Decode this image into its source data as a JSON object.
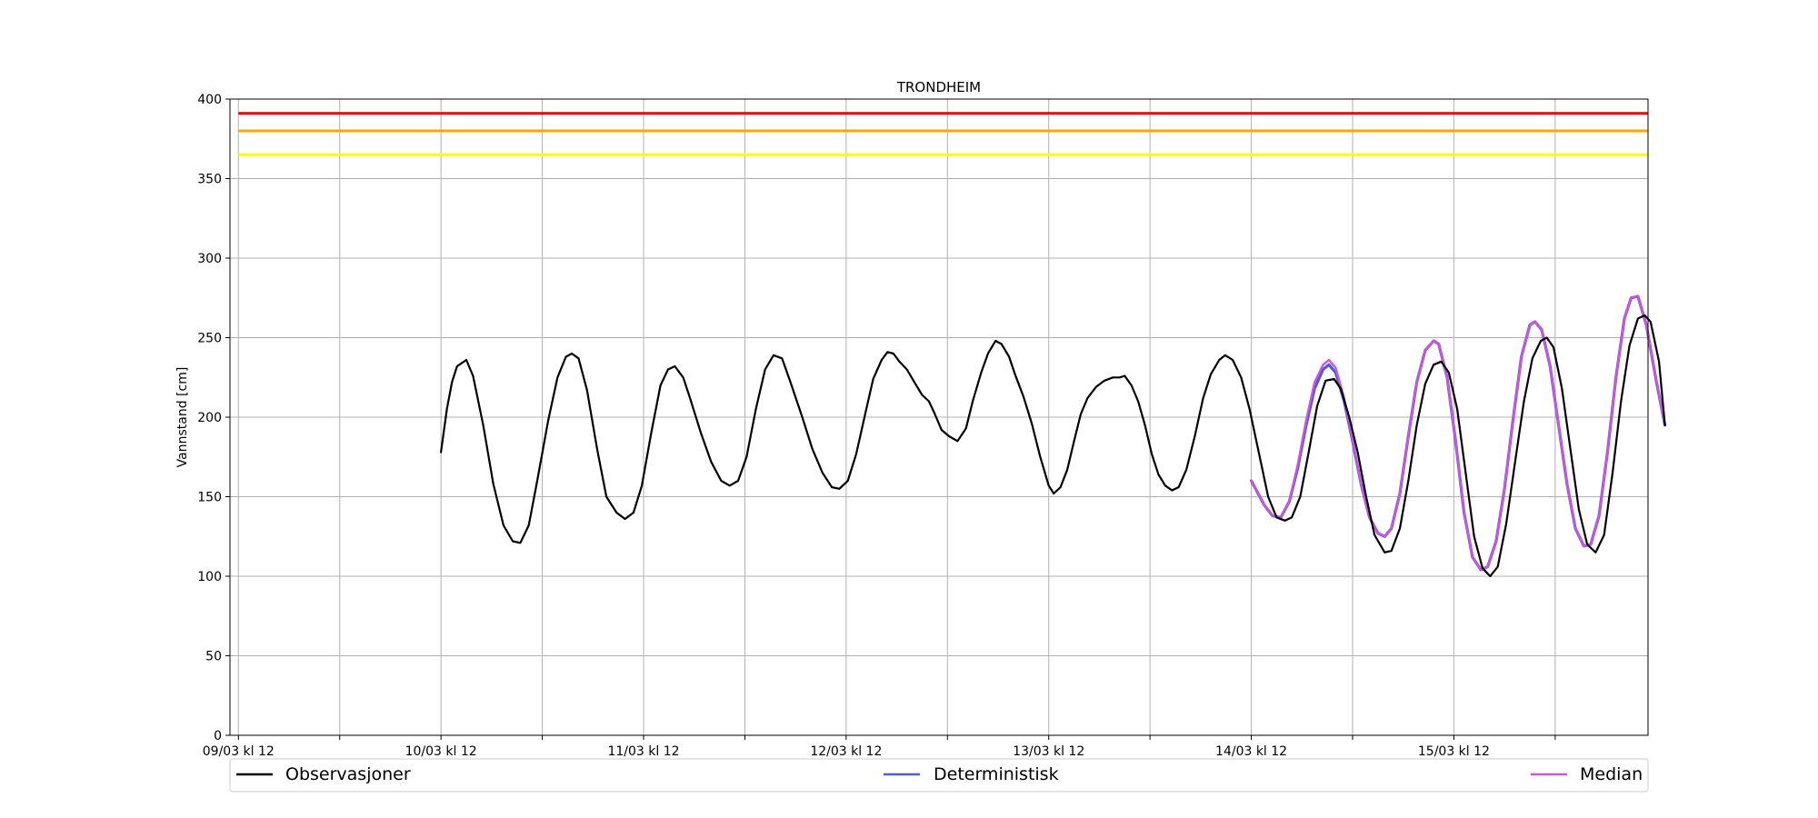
{
  "chart_data": {
    "type": "line",
    "title": "TRONDHEIM",
    "xlabel": "",
    "ylabel": "Vannstand [cm]",
    "ylim": [
      0,
      400
    ],
    "xlim_hours": [
      -1,
      167
    ],
    "x_unit": "hours after 09/03 kl 12",
    "yticks": [
      0,
      50,
      100,
      150,
      200,
      250,
      300,
      350,
      400
    ],
    "xticks": [
      {
        "h": 0,
        "label": "09/03 kl 12"
      },
      {
        "h": 12,
        "label": ""
      },
      {
        "h": 24,
        "label": "10/03 kl 12"
      },
      {
        "h": 36,
        "label": ""
      },
      {
        "h": 48,
        "label": "11/03 kl 12"
      },
      {
        "h": 60,
        "label": ""
      },
      {
        "h": 72,
        "label": "12/03 kl 12"
      },
      {
        "h": 84,
        "label": ""
      },
      {
        "h": 96,
        "label": "13/03 kl 12"
      },
      {
        "h": 108,
        "label": ""
      },
      {
        "h": 120,
        "label": "14/03 kl 12"
      },
      {
        "h": 132,
        "label": ""
      },
      {
        "h": 144,
        "label": "15/03 kl 12"
      },
      {
        "h": 156,
        "label": ""
      }
    ],
    "grid": true,
    "legend_position": "bottom",
    "thresholds": [
      {
        "value": 391,
        "color": "#e8000b"
      },
      {
        "value": 380,
        "color": "#ffa500"
      },
      {
        "value": 365,
        "color": "#ffff00"
      }
    ],
    "series": [
      {
        "name": "Observasjoner",
        "color": "#000000",
        "points": [
          [
            24,
            178
          ],
          [
            24.7,
            205
          ],
          [
            25.3,
            222
          ],
          [
            25.9,
            232
          ],
          [
            27.0,
            236
          ],
          [
            27.8,
            226
          ],
          [
            29,
            195
          ],
          [
            30.2,
            158
          ],
          [
            31.4,
            132
          ],
          [
            32.5,
            122
          ],
          [
            33.4,
            121
          ],
          [
            34.4,
            132
          ],
          [
            35.4,
            160
          ],
          [
            36.7,
            198
          ],
          [
            37.8,
            225
          ],
          [
            38.8,
            238
          ],
          [
            39.5,
            240
          ],
          [
            40.3,
            237
          ],
          [
            41.3,
            217
          ],
          [
            42.5,
            180
          ],
          [
            43.6,
            150
          ],
          [
            44.8,
            140
          ],
          [
            45.8,
            136
          ],
          [
            46.8,
            140
          ],
          [
            47.8,
            157
          ],
          [
            48.9,
            190
          ],
          [
            50.0,
            220
          ],
          [
            50.9,
            230
          ],
          [
            51.7,
            232
          ],
          [
            52.7,
            225
          ],
          [
            53.5,
            212
          ],
          [
            54.8,
            190
          ],
          [
            56.0,
            172
          ],
          [
            57.2,
            160
          ],
          [
            58.2,
            157
          ],
          [
            59.2,
            160
          ],
          [
            60.2,
            175
          ],
          [
            61.3,
            205
          ],
          [
            62.4,
            230
          ],
          [
            63.4,
            239
          ],
          [
            64.4,
            237
          ],
          [
            65.4,
            222
          ],
          [
            66.8,
            200
          ],
          [
            68.0,
            180
          ],
          [
            69.2,
            165
          ],
          [
            70.3,
            156
          ],
          [
            71.2,
            155
          ],
          [
            72.2,
            160
          ],
          [
            73.2,
            177
          ],
          [
            74.3,
            203
          ],
          [
            75.2,
            224
          ],
          [
            76.2,
            236
          ],
          [
            76.9,
            241
          ],
          [
            77.6,
            240
          ],
          [
            78.3,
            235
          ],
          [
            79.2,
            230
          ],
          [
            80.2,
            221
          ],
          [
            81.0,
            214
          ],
          [
            81.8,
            210
          ],
          [
            82.5,
            202
          ],
          [
            83.3,
            192
          ],
          [
            84.2,
            188
          ],
          [
            85.2,
            185
          ],
          [
            86.2,
            193
          ],
          [
            87.0,
            210
          ],
          [
            88.0,
            228
          ],
          [
            88.8,
            240
          ],
          [
            89.7,
            248
          ],
          [
            90.4,
            246
          ],
          [
            91.3,
            238
          ],
          [
            92.0,
            227
          ],
          [
            93.0,
            213
          ],
          [
            94.0,
            196
          ],
          [
            95.0,
            175
          ],
          [
            96.0,
            157
          ],
          [
            96.6,
            152
          ],
          [
            97.4,
            156
          ],
          [
            98.2,
            167
          ],
          [
            99.0,
            185
          ],
          [
            99.8,
            202
          ],
          [
            100.6,
            212
          ],
          [
            101.6,
            219
          ],
          [
            102.6,
            223
          ],
          [
            103.6,
            225
          ],
          [
            104.4,
            225
          ],
          [
            105.0,
            226
          ],
          [
            105.8,
            220
          ],
          [
            106.6,
            210
          ],
          [
            107.4,
            195
          ],
          [
            108.2,
            177
          ],
          [
            109.0,
            164
          ],
          [
            109.8,
            157
          ],
          [
            110.6,
            154
          ],
          [
            111.4,
            156
          ],
          [
            112.3,
            167
          ],
          [
            113.3,
            188
          ],
          [
            114.3,
            212
          ],
          [
            115.2,
            227
          ],
          [
            116.2,
            236
          ],
          [
            116.9,
            239
          ],
          [
            117.8,
            236
          ],
          [
            118.8,
            225
          ],
          [
            119.8,
            205
          ],
          [
            120.8,
            180
          ],
          [
            122.0,
            150
          ],
          [
            123.0,
            137
          ],
          [
            124.0,
            135
          ],
          [
            124.8,
            137
          ],
          [
            125.8,
            150
          ],
          [
            126.8,
            178
          ],
          [
            127.8,
            207
          ],
          [
            128.8,
            223
          ],
          [
            129.8,
            224
          ],
          [
            130.6,
            218
          ],
          [
            131.6,
            200
          ],
          [
            132.6,
            178
          ],
          [
            133.6,
            150
          ],
          [
            134.6,
            126
          ],
          [
            135.8,
            115
          ],
          [
            136.6,
            116
          ],
          [
            137.6,
            130
          ],
          [
            138.6,
            160
          ],
          [
            139.6,
            195
          ],
          [
            140.6,
            221
          ],
          [
            141.6,
            233
          ],
          [
            142.5,
            235
          ],
          [
            143.4,
            228
          ],
          [
            144.4,
            205
          ],
          [
            145.4,
            165
          ],
          [
            146.4,
            125
          ],
          [
            147.4,
            105
          ],
          [
            148.3,
            100
          ],
          [
            149.2,
            106
          ],
          [
            150.2,
            133
          ],
          [
            151.2,
            170
          ],
          [
            152.3,
            210
          ],
          [
            153.3,
            237
          ],
          [
            154.3,
            248
          ],
          [
            155.0,
            250
          ],
          [
            155.8,
            244
          ],
          [
            156.8,
            218
          ],
          [
            157.8,
            180
          ],
          [
            158.8,
            142
          ],
          [
            159.8,
            120
          ],
          [
            160.8,
            115
          ],
          [
            161.8,
            126
          ],
          [
            162.8,
            165
          ],
          [
            163.8,
            210
          ],
          [
            164.8,
            245
          ],
          [
            165.8,
            262
          ],
          [
            166.6,
            264
          ],
          [
            167.3,
            260
          ],
          [
            168.3,
            235
          ],
          [
            169,
            195
          ]
        ]
      },
      {
        "name": "Deterministisk",
        "color": "#5555dd",
        "points": [
          [
            120,
            160
          ],
          [
            121.5,
            145
          ],
          [
            122.5,
            138
          ],
          [
            123.5,
            137
          ],
          [
            124.5,
            147
          ],
          [
            125.5,
            168
          ],
          [
            126.5,
            195
          ],
          [
            127.5,
            218
          ],
          [
            128.5,
            230
          ],
          [
            129.2,
            233
          ],
          [
            130.0,
            228
          ],
          [
            131.0,
            210
          ],
          [
            132.0,
            185
          ],
          [
            133.0,
            158
          ],
          [
            134.0,
            137
          ],
          [
            135.0,
            127
          ],
          [
            135.8,
            125
          ],
          [
            136.6,
            130
          ],
          [
            137.6,
            152
          ],
          [
            138.6,
            188
          ],
          [
            139.6,
            222
          ],
          [
            140.6,
            242
          ],
          [
            141.6,
            248
          ],
          [
            142.2,
            246
          ],
          [
            143.2,
            225
          ],
          [
            144.2,
            185
          ],
          [
            145.2,
            140
          ],
          [
            146.2,
            112
          ],
          [
            147.2,
            104
          ],
          [
            148.0,
            106
          ],
          [
            149.0,
            122
          ],
          [
            150.0,
            155
          ],
          [
            151.0,
            198
          ],
          [
            152.0,
            238
          ],
          [
            153.0,
            258
          ],
          [
            153.6,
            260
          ],
          [
            154.4,
            255
          ],
          [
            155.4,
            232
          ],
          [
            156.4,
            195
          ],
          [
            157.4,
            158
          ],
          [
            158.4,
            130
          ],
          [
            159.4,
            119
          ],
          [
            160.2,
            120
          ],
          [
            161.2,
            138
          ],
          [
            162.2,
            178
          ],
          [
            163.2,
            225
          ],
          [
            164.2,
            262
          ],
          [
            165.0,
            275
          ],
          [
            165.8,
            276
          ],
          [
            166.8,
            258
          ],
          [
            168.0,
            222
          ],
          [
            169,
            195
          ]
        ]
      },
      {
        "name": "Median",
        "color": "#cc55dd",
        "points": [
          [
            120,
            160
          ],
          [
            121.5,
            145
          ],
          [
            122.5,
            138
          ],
          [
            123.5,
            137
          ],
          [
            124.5,
            147
          ],
          [
            125.5,
            170
          ],
          [
            126.5,
            198
          ],
          [
            127.5,
            222
          ],
          [
            128.5,
            233
          ],
          [
            129.2,
            236
          ],
          [
            130.0,
            231
          ],
          [
            131.0,
            212
          ],
          [
            132.0,
            186
          ],
          [
            133.0,
            158
          ],
          [
            134.0,
            137
          ],
          [
            135.0,
            127
          ],
          [
            135.8,
            125
          ],
          [
            136.6,
            130
          ],
          [
            137.6,
            152
          ],
          [
            138.6,
            188
          ],
          [
            139.6,
            222
          ],
          [
            140.6,
            242
          ],
          [
            141.6,
            248
          ],
          [
            142.2,
            246
          ],
          [
            143.2,
            225
          ],
          [
            144.2,
            185
          ],
          [
            145.2,
            140
          ],
          [
            146.2,
            112
          ],
          [
            147.2,
            104
          ],
          [
            148.0,
            106
          ],
          [
            149.0,
            122
          ],
          [
            150.0,
            155
          ],
          [
            151.0,
            198
          ],
          [
            152.0,
            238
          ],
          [
            153.0,
            258
          ],
          [
            153.6,
            260
          ],
          [
            154.4,
            255
          ],
          [
            155.4,
            232
          ],
          [
            156.4,
            195
          ],
          [
            157.4,
            158
          ],
          [
            158.4,
            130
          ],
          [
            159.4,
            119
          ],
          [
            160.2,
            120
          ],
          [
            161.2,
            138
          ],
          [
            162.2,
            178
          ],
          [
            163.2,
            225
          ],
          [
            164.2,
            262
          ],
          [
            165.0,
            275
          ],
          [
            165.8,
            276
          ],
          [
            166.8,
            258
          ],
          [
            168.0,
            222
          ],
          [
            169,
            195
          ]
        ]
      }
    ]
  }
}
